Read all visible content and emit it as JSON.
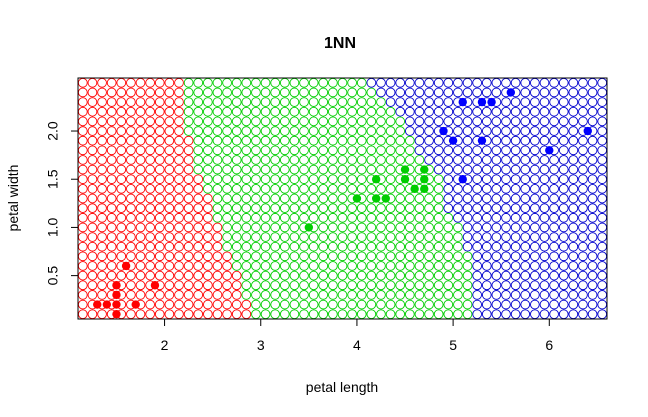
{
  "chart_data": {
    "type": "scatter",
    "title": "1NN",
    "xlabel": "petal length",
    "ylabel": "petal width",
    "xlim": [
      1.1,
      6.6
    ],
    "ylim": [
      0.05,
      2.55
    ],
    "x_ticks": [
      2,
      3,
      4,
      5,
      6
    ],
    "y_ticks": [
      0.5,
      1.0,
      1.5,
      2.0
    ],
    "x_tick_labels": [
      "2",
      "3",
      "4",
      "5",
      "6"
    ],
    "y_tick_labels": [
      "0.5",
      "1.0",
      "1.5",
      "2.0"
    ],
    "grid": false,
    "legend": "none",
    "decision_regions": {
      "x_step": 0.1,
      "y_step": 0.1,
      "boundaries_by_y": [
        {
          "y": 0.1,
          "red_until": 2.9,
          "green_until": 5.2
        },
        {
          "y": 0.2,
          "red_until": 2.9,
          "green_until": 5.2
        },
        {
          "y": 0.3,
          "red_until": 2.8,
          "green_until": 5.2
        },
        {
          "y": 0.4,
          "red_until": 2.8,
          "green_until": 5.2
        },
        {
          "y": 0.5,
          "red_until": 2.8,
          "green_until": 5.2
        },
        {
          "y": 0.6,
          "red_until": 2.7,
          "green_until": 5.2
        },
        {
          "y": 0.7,
          "red_until": 2.7,
          "green_until": 5.2
        },
        {
          "y": 0.8,
          "red_until": 2.6,
          "green_until": 5.1
        },
        {
          "y": 0.9,
          "red_until": 2.6,
          "green_until": 5.1
        },
        {
          "y": 1.0,
          "red_until": 2.6,
          "green_until": 5.1
        },
        {
          "y": 1.1,
          "red_until": 2.5,
          "green_until": 5.0
        },
        {
          "y": 1.2,
          "red_until": 2.5,
          "green_until": 4.9
        },
        {
          "y": 1.3,
          "red_until": 2.5,
          "green_until": 4.9
        },
        {
          "y": 1.4,
          "red_until": 2.4,
          "green_until": 4.9
        },
        {
          "y": 1.5,
          "red_until": 2.4,
          "green_until": 4.9
        },
        {
          "y": 1.6,
          "red_until": 2.3,
          "green_until": 4.8
        },
        {
          "y": 1.7,
          "red_until": 2.3,
          "green_until": 4.7
        },
        {
          "y": 1.8,
          "red_until": 2.3,
          "green_until": 4.6
        },
        {
          "y": 1.9,
          "red_until": 2.3,
          "green_until": 4.6
        },
        {
          "y": 2.0,
          "red_until": 2.2,
          "green_until": 4.5
        },
        {
          "y": 2.1,
          "red_until": 2.2,
          "green_until": 4.5
        },
        {
          "y": 2.2,
          "red_until": 2.2,
          "green_until": 4.4
        },
        {
          "y": 2.3,
          "red_until": 2.2,
          "green_until": 4.3
        },
        {
          "y": 2.4,
          "red_until": 2.2,
          "green_until": 4.2
        },
        {
          "y": 2.5,
          "red_until": 2.2,
          "green_until": 4.1
        }
      ]
    },
    "series": [
      {
        "class": "red",
        "color": "#ff0000",
        "points": [
          [
            1.3,
            0.2
          ],
          [
            1.4,
            0.2
          ],
          [
            1.5,
            0.1
          ],
          [
            1.5,
            0.2
          ],
          [
            1.5,
            0.3
          ],
          [
            1.5,
            0.4
          ],
          [
            1.6,
            0.6
          ],
          [
            1.7,
            0.2
          ],
          [
            1.9,
            0.4
          ]
        ]
      },
      {
        "class": "green",
        "color": "#00cd00",
        "points": [
          [
            3.5,
            1.0
          ],
          [
            4.0,
            1.3
          ],
          [
            4.2,
            1.5
          ],
          [
            4.2,
            1.3
          ],
          [
            4.3,
            1.3
          ],
          [
            4.5,
            1.6
          ],
          [
            4.5,
            1.5
          ],
          [
            4.6,
            1.4
          ],
          [
            4.7,
            1.6
          ],
          [
            4.7,
            1.5
          ],
          [
            4.7,
            1.4
          ]
        ]
      },
      {
        "class": "blue",
        "color": "#0000ff",
        "points": [
          [
            4.9,
            2.0
          ],
          [
            5.0,
            1.9
          ],
          [
            5.1,
            1.5
          ],
          [
            5.1,
            2.3
          ],
          [
            5.3,
            2.3
          ],
          [
            5.3,
            1.9
          ],
          [
            5.4,
            2.3
          ],
          [
            5.6,
            2.4
          ],
          [
            6.0,
            1.8
          ],
          [
            6.4,
            2.0
          ]
        ]
      }
    ],
    "region_colors": {
      "red": "#ff0000",
      "green": "#00cd00",
      "blue": "#0000cd"
    }
  }
}
